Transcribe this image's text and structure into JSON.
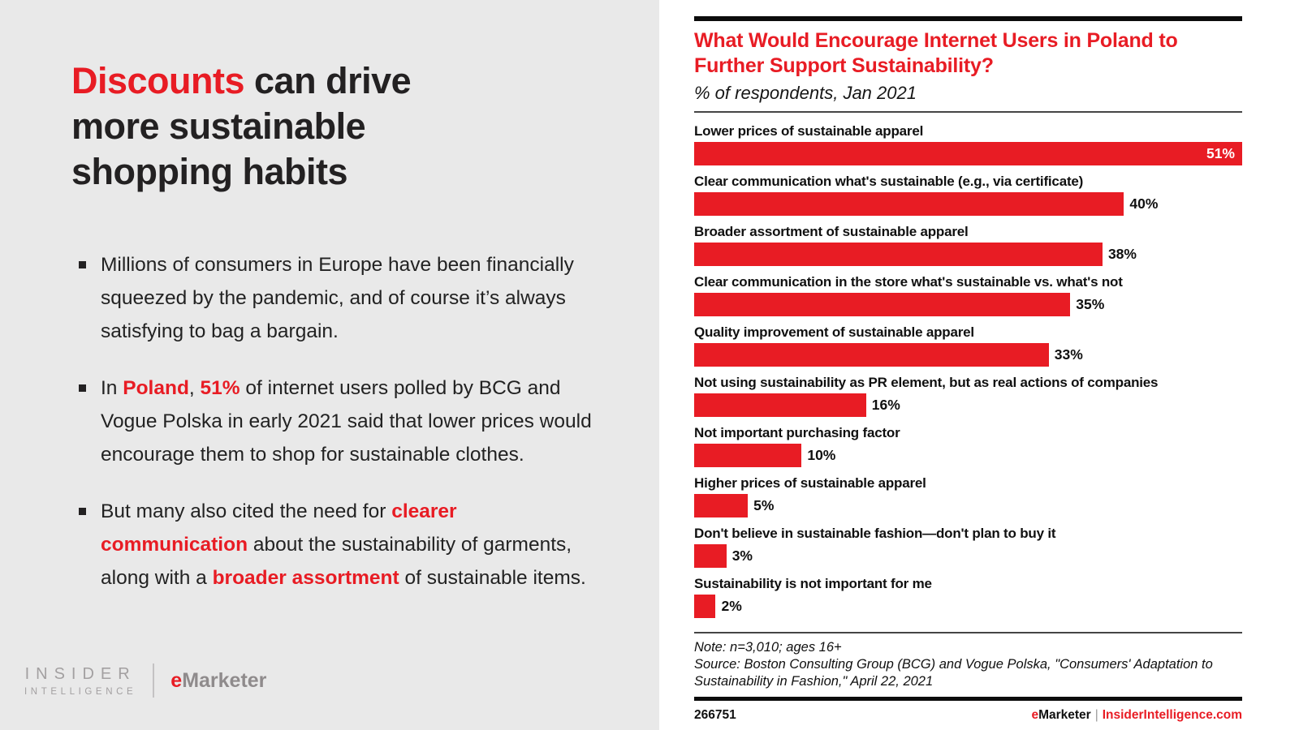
{
  "colors": {
    "accent": "#e81c24",
    "left_panel_background": "#e9e9e9",
    "logo_gray": "#a3a0a1"
  },
  "left_panel": {
    "title_segments": [
      {
        "text": "Discounts",
        "red": true
      },
      {
        "text": " can drive more sustainable shopping habits",
        "red": false
      }
    ],
    "bullets": [
      [
        {
          "text": "Millions of consumers in Europe have been financially squeezed by the pandemic, and of course it’s always satisfying to bag a bargain.",
          "red": false
        }
      ],
      [
        {
          "text": "In ",
          "red": false
        },
        {
          "text": "Poland",
          "red": true
        },
        {
          "text": ", ",
          "red": false
        },
        {
          "text": "51%",
          "red": true
        },
        {
          "text": " of internet users polled by BCG and Vogue Polska in early 2021 said that lower prices would encourage them to shop for sustainable clothes.",
          "red": false
        }
      ],
      [
        {
          "text": "But many also cited the need for ",
          "red": false
        },
        {
          "text": "clearer communication",
          "red": true
        },
        {
          "text": " about the sustainability of garments, along with a ",
          "red": false
        },
        {
          "text": "broader assortment",
          "red": true
        },
        {
          "text": " of sustainable items.",
          "red": false
        }
      ]
    ],
    "logo": {
      "insider_line1": "INSIDER",
      "insider_line2": "INTELLIGENCE",
      "emarketer_e": "e",
      "emarketer_rest": "Marketer"
    }
  },
  "chart": {
    "title": "What Would Encourage Internet Users in Poland to Further Support Sustainability?",
    "subtitle": "% of respondents, Jan 2021",
    "max_value": 51,
    "rows": [
      {
        "label": "Lower prices of sustainable apparel",
        "value": 51,
        "display": "51%",
        "value_inside": true
      },
      {
        "label": "Clear communication what's sustainable (e.g., via certificate)",
        "value": 40,
        "display": "40%",
        "value_inside": false
      },
      {
        "label": "Broader assortment of sustainable apparel",
        "value": 38,
        "display": "38%",
        "value_inside": false
      },
      {
        "label": "Clear communication in the store what's sustainable vs. what's not",
        "value": 35,
        "display": "35%",
        "value_inside": false
      },
      {
        "label": "Quality improvement of sustainable apparel",
        "value": 33,
        "display": "33%",
        "value_inside": false
      },
      {
        "label": "Not using sustainability as PR element, but as real actions of companies",
        "value": 16,
        "display": "16%",
        "value_inside": false
      },
      {
        "label": "Not important purchasing factor",
        "value": 10,
        "display": "10%",
        "value_inside": false
      },
      {
        "label": "Higher prices of sustainable apparel",
        "value": 5,
        "display": "5%",
        "value_inside": false
      },
      {
        "label": "Don't believe in sustainable fashion—don't plan to buy it",
        "value": 3,
        "display": "3%",
        "value_inside": false
      },
      {
        "label": "Sustainability is not important for me",
        "value": 2,
        "display": "2%",
        "value_inside": false
      }
    ],
    "note": "Note: n=3,010; ages 16+",
    "source": "Source: Boston Consulting Group (BCG) and Vogue Polska, \"Consumers' Adaptation to Sustainability in Fashion,\" April 22, 2021",
    "footer": {
      "id": "266751",
      "brand_e": "e",
      "brand_rest": "Marketer",
      "separator": "|",
      "site": "InsiderIntelligence.com"
    }
  },
  "chart_data": {
    "type": "bar",
    "orientation": "horizontal",
    "title": "What Would Encourage Internet Users in Poland to Further Support Sustainability?",
    "subtitle": "% of respondents, Jan 2021",
    "categories": [
      "Lower prices of sustainable apparel",
      "Clear communication what's sustainable (e.g., via certificate)",
      "Broader assortment of sustainable apparel",
      "Clear communication in the store what's sustainable vs. what's not",
      "Quality improvement of sustainable apparel",
      "Not using sustainability as PR element, but as real actions of companies",
      "Not important purchasing factor",
      "Higher prices of sustainable apparel",
      "Don't believe in sustainable fashion—don't plan to buy it",
      "Sustainability is not important for me"
    ],
    "values": [
      51,
      40,
      38,
      35,
      33,
      16,
      10,
      5,
      3,
      2
    ],
    "unit": "%",
    "xlim": [
      0,
      51
    ],
    "grid": false,
    "legend": false,
    "bar_color": "#e81c24",
    "note": "Note: n=3,010; ages 16+",
    "source": "Source: Boston Consulting Group (BCG) and Vogue Polska, \"Consumers' Adaptation to Sustainability in Fashion,\" April 22, 2021"
  }
}
